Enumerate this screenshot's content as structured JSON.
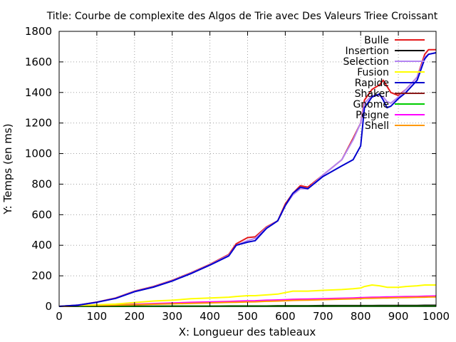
{
  "chart_data": {
    "type": "line",
    "title": "Title: Courbe de complexite des Algos de Trie avec Des Valeurs Triee Croissant",
    "xlabel": "X: Longueur des tableaux",
    "ylabel": "Y: Temps (en ms)",
    "xlim": [
      0,
      1000
    ],
    "ylim": [
      0,
      1800
    ],
    "xticks": [
      "0",
      "100",
      "200",
      "300",
      "400",
      "500",
      "600",
      "700",
      "800",
      "900",
      "1000"
    ],
    "yticks": [
      "0",
      "200",
      "400",
      "600",
      "800",
      "1000",
      "1200",
      "1400",
      "1600",
      "1800"
    ],
    "grid": true,
    "legend_position": "top-right",
    "x": [
      0,
      50,
      100,
      150,
      200,
      250,
      300,
      350,
      400,
      450,
      470,
      500,
      520,
      550,
      580,
      600,
      620,
      640,
      660,
      700,
      750,
      780,
      800,
      810,
      830,
      850,
      860,
      870,
      880,
      900,
      920,
      950,
      970,
      980,
      1000
    ],
    "series": [
      {
        "name": "Bulle",
        "color": "#e41a1c",
        "values": [
          0,
          8,
          28,
          55,
          100,
          130,
          170,
          220,
          275,
          340,
          410,
          450,
          455,
          520,
          560,
          670,
          740,
          790,
          780,
          860,
          960,
          1100,
          1200,
          1350,
          1420,
          1450,
          1480,
          1440,
          1400,
          1380,
          1420,
          1500,
          1650,
          1680,
          1680
        ]
      },
      {
        "name": "Insertion",
        "color": "#000000",
        "values": [
          0,
          0,
          0,
          1,
          1,
          1,
          2,
          2,
          2,
          3,
          3,
          3,
          3,
          3,
          4,
          4,
          4,
          4,
          4,
          5,
          5,
          5,
          5,
          5,
          5,
          6,
          6,
          6,
          6,
          6,
          6,
          6,
          7,
          7,
          7
        ]
      },
      {
        "name": "Selection",
        "color": "#b385f2",
        "values": [
          0,
          8,
          27,
          53,
          98,
          128,
          168,
          218,
          272,
          335,
          400,
          430,
          445,
          515,
          560,
          660,
          730,
          770,
          770,
          860,
          960,
          1090,
          1200,
          1330,
          1380,
          1380,
          1370,
          1340,
          1330,
          1370,
          1420,
          1500,
          1630,
          1650,
          1660
        ]
      },
      {
        "name": "Fusion",
        "color": "#ffff00",
        "values": [
          0,
          5,
          10,
          15,
          25,
          35,
          40,
          50,
          55,
          60,
          65,
          70,
          70,
          75,
          80,
          90,
          100,
          100,
          100,
          105,
          110,
          115,
          120,
          130,
          140,
          135,
          130,
          125,
          125,
          125,
          130,
          135,
          140,
          140,
          140
        ]
      },
      {
        "name": "Rapide",
        "color": "#0000cd",
        "values": [
          0,
          8,
          27,
          52,
          96,
          126,
          166,
          215,
          270,
          330,
          400,
          420,
          430,
          510,
          560,
          660,
          740,
          780,
          770,
          850,
          920,
          960,
          1050,
          1300,
          1370,
          1390,
          1350,
          1300,
          1310,
          1360,
          1400,
          1480,
          1620,
          1650,
          1660
        ]
      },
      {
        "name": "Shaker",
        "color": "#8b1a1a",
        "values": [
          0,
          0,
          0,
          0,
          1,
          1,
          1,
          1,
          1,
          1,
          1,
          1,
          1,
          1,
          1,
          1,
          1,
          1,
          1,
          1,
          2,
          2,
          2,
          2,
          2,
          2,
          2,
          2,
          2,
          2,
          2,
          2,
          2,
          2,
          2
        ]
      },
      {
        "name": "Gnome",
        "color": "#00cc00",
        "values": [
          0,
          0,
          0,
          0,
          0,
          0,
          1,
          1,
          1,
          1,
          1,
          1,
          1,
          1,
          1,
          1,
          1,
          1,
          1,
          1,
          1,
          1,
          1,
          1,
          1,
          1,
          1,
          1,
          1,
          1,
          1,
          1,
          1,
          1,
          1
        ]
      },
      {
        "name": "Peigne",
        "color": "#ff00ff",
        "values": [
          0,
          3,
          6,
          10,
          14,
          18,
          22,
          26,
          29,
          32,
          34,
          36,
          37,
          40,
          42,
          44,
          46,
          47,
          48,
          50,
          53,
          55,
          57,
          58,
          59,
          60,
          61,
          62,
          62,
          63,
          64,
          65,
          66,
          67,
          68
        ]
      },
      {
        "name": "Shell",
        "color": "#ff9900",
        "values": [
          0,
          2,
          5,
          8,
          11,
          14,
          17,
          20,
          23,
          26,
          27,
          29,
          30,
          33,
          35,
          37,
          39,
          40,
          41,
          44,
          47,
          49,
          51,
          52,
          53,
          54,
          55,
          55,
          56,
          57,
          58,
          59,
          60,
          61,
          62
        ]
      }
    ]
  }
}
